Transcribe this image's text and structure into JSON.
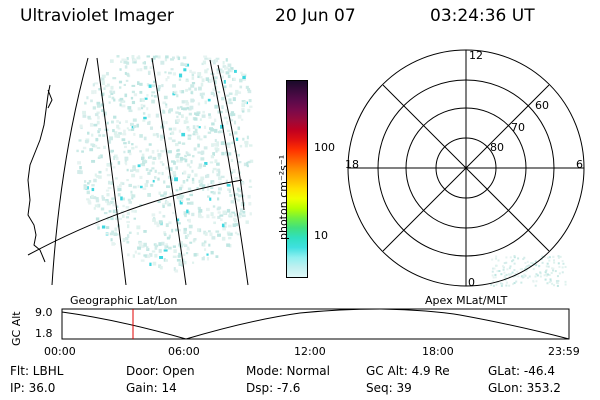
{
  "header": {
    "title": "Ultraviolet Imager",
    "date": "20 Jun 07",
    "time": "03:24:36 UT"
  },
  "colorbar": {
    "label": "photon cm⁻²s⁻¹",
    "ticks": [
      "100",
      "10"
    ],
    "colors": [
      "#1a0a2a",
      "#3b0a3c",
      "#5a0a4a",
      "#7a0a4a",
      "#9a0a3a",
      "#c00020",
      "#e01010",
      "#ff3000",
      "#ff6000",
      "#ff9000",
      "#ffb800",
      "#ffe000",
      "#f0ff00",
      "#b8ff00",
      "#70f040",
      "#40e080",
      "#30e0c0",
      "#40e0e0",
      "#90f0f0",
      "#c0f0f0",
      "#e0f8f8"
    ]
  },
  "polar": {
    "mlt_labels": {
      "top": "12",
      "left": "18",
      "right": "6",
      "bottom": "0"
    },
    "lat_labels": [
      "60",
      "70",
      "80"
    ]
  },
  "timeline": {
    "left_label": "Geographic Lat/Lon",
    "right_label": "Apex MLat/MLT",
    "axis_label": "GC Alt",
    "y_ticks": [
      "9.0",
      "1.8"
    ],
    "x_ticks": [
      "00:00",
      "06:00",
      "12:00",
      "18:00",
      "23:59"
    ],
    "current_time": "03:24:36"
  },
  "footer": {
    "flt": "Flt: LBHL",
    "ip": "IP: 36.0",
    "door": "Door: Open",
    "gain": "Gain: 14",
    "mode": "Mode: Normal",
    "dsp": "Dsp:    -7.6",
    "gcalt": "GC Alt: 4.9 Re",
    "seq": "Seq: 39",
    "glat": "GLat: -46.4",
    "glon": "GLon: 353.2"
  }
}
